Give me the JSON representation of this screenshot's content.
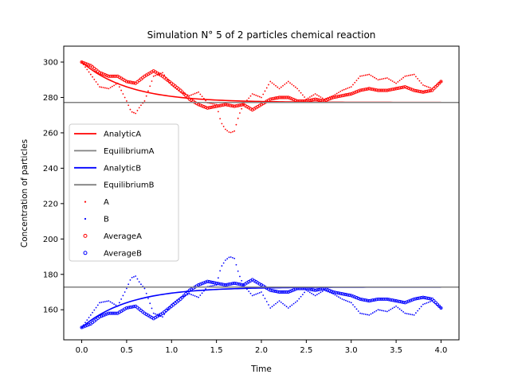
{
  "chart_data": {
    "type": "scatter",
    "title": "Simulation N° 5 of 2 particles chemical reaction",
    "xlabel": "Time",
    "ylabel": "Concentration of particles",
    "xlim": [
      -0.2,
      4.2
    ],
    "ylim": [
      143,
      309
    ],
    "xticks": [
      0.0,
      0.5,
      1.0,
      1.5,
      2.0,
      2.5,
      3.0,
      3.5,
      4.0
    ],
    "xtick_labels": [
      "0.0",
      "0.5",
      "1.0",
      "1.5",
      "2.0",
      "2.5",
      "3.0",
      "3.5",
      "4.0"
    ],
    "yticks": [
      160,
      180,
      200,
      220,
      240,
      260,
      280,
      300
    ],
    "ytick_labels": [
      "160",
      "180",
      "200",
      "220",
      "240",
      "260",
      "280",
      "300"
    ],
    "grid": false,
    "legend_position": "center-left",
    "legend": [
      "AnalyticA",
      "EquilibriumA",
      "AnalyticB",
      "EquilibriumB",
      "A",
      "B",
      "AverageA",
      "AverageB"
    ],
    "colors": {
      "A": "#ff0000",
      "B": "#0000ff",
      "equilibrium": "#808080"
    },
    "analytic": {
      "A": {
        "start": 300,
        "equilibrium": 277.2,
        "rate": 1.9
      },
      "B": {
        "start": 150,
        "equilibrium": 172.8,
        "rate": 1.9
      }
    },
    "equilibrium": {
      "A": 277.2,
      "B": 172.8
    },
    "series": [
      {
        "name": "AnalyticA",
        "style": "line",
        "color": "#ff0000",
        "x": [
          0,
          0.25,
          0.5,
          0.75,
          1.0,
          1.25,
          1.5,
          1.75,
          2.0,
          2.5,
          3.0,
          3.5,
          4.0
        ],
        "y": [
          300.0,
          294.5,
          290.5,
          287.5,
          285.3,
          283.4,
          282.0,
          280.9,
          280.0,
          278.7,
          278.0,
          277.5,
          277.3
        ]
      },
      {
        "name": "EquilibriumA",
        "style": "hline",
        "color": "#808080",
        "y": 277.2
      },
      {
        "name": "AnalyticB",
        "style": "line",
        "color": "#0000ff",
        "x": [
          0,
          0.25,
          0.5,
          0.75,
          1.0,
          1.25,
          1.5,
          1.75,
          2.0,
          2.5,
          3.0,
          3.5,
          4.0
        ],
        "y": [
          150.0,
          155.5,
          159.5,
          162.5,
          164.7,
          166.6,
          168.0,
          169.1,
          170.0,
          171.3,
          172.0,
          172.5,
          172.7
        ]
      },
      {
        "name": "EquilibriumB",
        "style": "hline",
        "color": "#808080",
        "y": 172.8
      },
      {
        "name": "A",
        "style": "points",
        "color": "#ff0000",
        "x": [
          0.0,
          0.1,
          0.2,
          0.3,
          0.4,
          0.5,
          0.55,
          0.6,
          0.65,
          0.7,
          0.8,
          0.9,
          1.0,
          1.1,
          1.2,
          1.3,
          1.4,
          1.5,
          1.55,
          1.6,
          1.65,
          1.7,
          1.75,
          1.8,
          1.9,
          2.0,
          2.1,
          2.2,
          2.3,
          2.4,
          2.5,
          2.6,
          2.7,
          2.8,
          2.9,
          3.0,
          3.1,
          3.2,
          3.3,
          3.4,
          3.5,
          3.6,
          3.7,
          3.8,
          3.9,
          4.0
        ],
        "y": [
          300,
          293,
          286,
          285,
          288,
          278,
          272,
          271,
          275,
          278,
          292,
          294,
          287,
          283,
          281,
          283,
          277,
          276,
          266,
          262,
          260,
          261,
          270,
          276,
          282,
          280,
          289,
          285,
          289,
          285,
          279,
          282,
          279,
          281,
          284,
          286,
          292,
          293,
          290,
          291,
          288,
          292,
          293,
          287,
          285,
          289
        ]
      },
      {
        "name": "B",
        "style": "points",
        "color": "#0000ff",
        "x": [
          0.0,
          0.1,
          0.2,
          0.3,
          0.4,
          0.5,
          0.55,
          0.6,
          0.65,
          0.7,
          0.8,
          0.9,
          1.0,
          1.1,
          1.2,
          1.3,
          1.4,
          1.5,
          1.55,
          1.6,
          1.65,
          1.7,
          1.75,
          1.8,
          1.9,
          2.0,
          2.1,
          2.2,
          2.3,
          2.4,
          2.5,
          2.6,
          2.7,
          2.8,
          2.9,
          3.0,
          3.1,
          3.2,
          3.3,
          3.4,
          3.5,
          3.6,
          3.7,
          3.8,
          3.9,
          4.0
        ],
        "y": [
          150,
          157,
          164,
          165,
          162,
          172,
          178,
          179,
          175,
          172,
          158,
          156,
          163,
          167,
          169,
          167,
          173,
          174,
          184,
          188,
          190,
          189,
          180,
          174,
          168,
          170,
          161,
          165,
          161,
          165,
          171,
          168,
          171,
          169,
          166,
          164,
          158,
          157,
          160,
          159,
          162,
          158,
          157,
          163,
          165,
          161
        ]
      },
      {
        "name": "AverageA",
        "style": "circles",
        "color": "#ff0000",
        "x": [
          0.0,
          0.1,
          0.2,
          0.3,
          0.4,
          0.5,
          0.6,
          0.7,
          0.8,
          0.9,
          1.0,
          1.1,
          1.2,
          1.3,
          1.4,
          1.5,
          1.6,
          1.7,
          1.8,
          1.9,
          2.0,
          2.1,
          2.2,
          2.3,
          2.4,
          2.5,
          2.6,
          2.7,
          2.8,
          2.9,
          3.0,
          3.1,
          3.2,
          3.3,
          3.4,
          3.5,
          3.6,
          3.7,
          3.8,
          3.9,
          4.0
        ],
        "y": [
          300,
          298,
          294,
          292,
          292,
          289,
          288,
          292,
          295,
          292,
          288,
          284,
          279,
          276,
          274,
          275,
          276,
          275,
          276,
          273,
          276,
          279,
          280,
          280,
          278,
          278,
          279,
          278,
          280,
          281,
          282,
          284,
          285,
          284,
          284,
          285,
          286,
          284,
          283,
          284,
          289
        ]
      },
      {
        "name": "AverageB",
        "style": "circles",
        "color": "#0000ff",
        "x": [
          0.0,
          0.1,
          0.2,
          0.3,
          0.4,
          0.5,
          0.6,
          0.7,
          0.8,
          0.9,
          1.0,
          1.1,
          1.2,
          1.3,
          1.4,
          1.5,
          1.6,
          1.7,
          1.8,
          1.9,
          2.0,
          2.1,
          2.2,
          2.3,
          2.4,
          2.5,
          2.6,
          2.7,
          2.8,
          2.9,
          3.0,
          3.1,
          3.2,
          3.3,
          3.4,
          3.5,
          3.6,
          3.7,
          3.8,
          3.9,
          4.0
        ],
        "y": [
          150,
          152,
          156,
          158,
          158,
          161,
          162,
          158,
          155,
          158,
          162,
          166,
          171,
          174,
          176,
          175,
          174,
          175,
          174,
          177,
          174,
          171,
          170,
          170,
          172,
          172,
          171,
          172,
          170,
          169,
          168,
          166,
          165,
          166,
          166,
          165,
          164,
          166,
          167,
          166,
          161
        ]
      }
    ]
  }
}
